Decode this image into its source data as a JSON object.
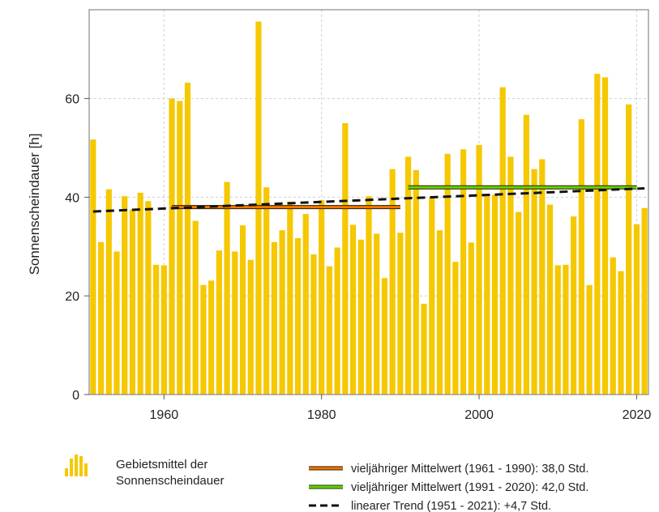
{
  "chart_data": {
    "type": "bar",
    "title": "",
    "ylabel": "Sonnenscheindauer [h]",
    "xlabel": "",
    "xlim": [
      1950.5,
      2021.5
    ],
    "ylim": [
      0,
      78
    ],
    "x_ticks": [
      1960,
      1980,
      2000,
      2020
    ],
    "y_ticks": [
      0,
      20,
      40,
      60
    ],
    "grid": true,
    "bar_color": "#f5c800",
    "years": [
      1951,
      1952,
      1953,
      1954,
      1955,
      1956,
      1957,
      1958,
      1959,
      1960,
      1961,
      1962,
      1963,
      1964,
      1965,
      1966,
      1967,
      1968,
      1969,
      1970,
      1971,
      1972,
      1973,
      1974,
      1975,
      1976,
      1977,
      1978,
      1979,
      1980,
      1981,
      1982,
      1983,
      1984,
      1985,
      1986,
      1987,
      1988,
      1989,
      1990,
      1991,
      1992,
      1993,
      1994,
      1995,
      1996,
      1997,
      1998,
      1999,
      2000,
      2001,
      2002,
      2003,
      2004,
      2005,
      2006,
      2007,
      2008,
      2009,
      2010,
      2011,
      2012,
      2013,
      2014,
      2015,
      2016,
      2017,
      2018,
      2019,
      2020,
      2021
    ],
    "values": [
      51.7,
      30.9,
      41.6,
      29.0,
      40.2,
      37.5,
      40.9,
      39.2,
      26.3,
      26.2,
      60.0,
      59.5,
      63.2,
      35.2,
      22.2,
      23.1,
      29.2,
      43.1,
      29.0,
      34.3,
      27.3,
      75.6,
      42.0,
      30.9,
      33.3,
      39.1,
      31.7,
      36.6,
      28.4,
      39.4,
      26.0,
      29.8,
      55.0,
      34.4,
      31.4,
      40.2,
      32.6,
      23.6,
      45.7,
      32.8,
      48.2,
      45.5,
      18.4,
      40.0,
      33.3,
      48.8,
      26.9,
      49.7,
      30.8,
      50.6,
      40.2,
      40.5,
      62.3,
      48.2,
      37.0,
      56.7,
      45.7,
      47.7,
      38.5,
      26.2,
      26.3,
      36.1,
      55.8,
      22.2,
      65.0,
      64.3,
      27.8,
      25.0,
      58.8,
      34.5,
      37.8
    ],
    "lines": [
      {
        "name": "vieljähriger Mittelwert (1961 - 1990): 38,0 Std.",
        "x": [
          1961,
          1990
        ],
        "y": [
          38.0,
          38.0
        ],
        "color": "#f07800",
        "style": "solid"
      },
      {
        "name": "vieljähriger Mittelwert (1991 - 2020): 42,0 Std.",
        "x": [
          1991,
          2020
        ],
        "y": [
          42.0,
          42.0
        ],
        "color": "#66d400",
        "style": "solid"
      },
      {
        "name": "linearer Trend (1951 - 2021): +4,7 Std.",
        "x": [
          1951,
          2021
        ],
        "y": [
          37.1,
          41.8
        ],
        "color": "#111111",
        "style": "dashed"
      }
    ],
    "legend": {
      "bars_label_line1": "Gebietsmittel der",
      "bars_label_line2": "Sonnenscheindauer",
      "placement": "bottom"
    }
  }
}
